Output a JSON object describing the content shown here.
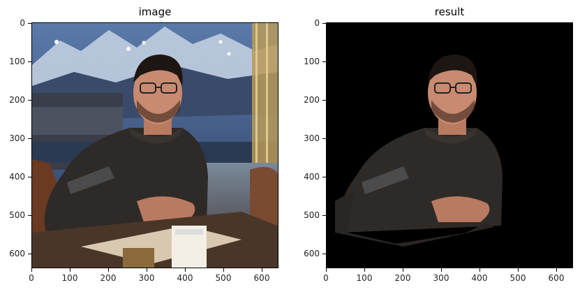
{
  "figure": {
    "panels": [
      {
        "title": "image",
        "x_ticks": [
          "0",
          "100",
          "200",
          "300",
          "400",
          "500",
          "600"
        ],
        "y_ticks": [
          "0",
          "100",
          "200",
          "300",
          "400",
          "500",
          "600"
        ]
      },
      {
        "title": "result",
        "x_ticks": [
          "0",
          "100",
          "200",
          "300",
          "400",
          "500",
          "600"
        ],
        "y_ticks": [
          "0",
          "100",
          "200",
          "300",
          "400",
          "500",
          "600"
        ]
      }
    ],
    "colors": {
      "sky": "#4a6a9a",
      "mountain": "#c8d4e4",
      "sweater": "#2e2a28",
      "skin": "#c88a70",
      "hair": "#1e1612",
      "table": "#4a3628",
      "background_result": "#000000"
    }
  }
}
